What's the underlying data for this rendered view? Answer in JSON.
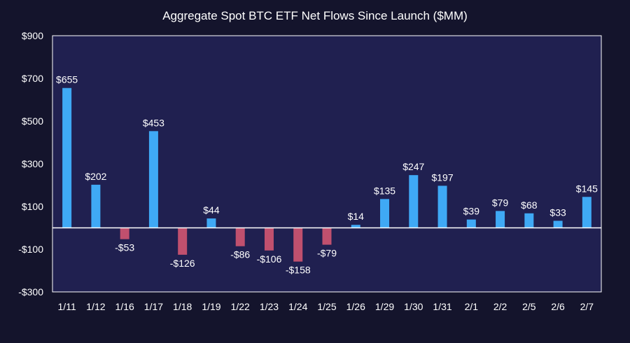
{
  "chart_data": {
    "type": "bar",
    "title": "Aggregate Spot BTC ETF Net Flows Since Launch ($MM)",
    "xlabel": "",
    "ylabel": "",
    "ylim": [
      -300,
      900
    ],
    "yticks": [
      900,
      700,
      500,
      300,
      100,
      -100,
      -300
    ],
    "ytick_labels": [
      "$900",
      "$700",
      "$500",
      "$300",
      "$100",
      "-$100",
      "-$300"
    ],
    "grid": false,
    "legend": "none",
    "categories": [
      "1/11",
      "1/12",
      "1/16",
      "1/17",
      "1/18",
      "1/19",
      "1/22",
      "1/23",
      "1/24",
      "1/25",
      "1/26",
      "1/29",
      "1/30",
      "1/31",
      "2/1",
      "2/2",
      "2/5",
      "2/6",
      "2/7"
    ],
    "values": [
      655,
      202,
      -53,
      453,
      -126,
      44,
      -86,
      -106,
      -158,
      -79,
      14,
      135,
      247,
      197,
      39,
      79,
      68,
      33,
      145
    ],
    "data_labels": [
      "$655",
      "$202",
      "-$53",
      "$453",
      "-$126",
      "$44",
      "-$86",
      "-$106",
      "-$158",
      "-$79",
      "$14",
      "$135",
      "$247",
      "$197",
      "$39",
      "$79",
      "$68",
      "$33",
      "$145"
    ],
    "colors": {
      "positive": "#3fa9f5",
      "negative": "#c0506e",
      "plot_background": "#202050",
      "page_background": "#14142c",
      "text": "#ffffff"
    }
  }
}
